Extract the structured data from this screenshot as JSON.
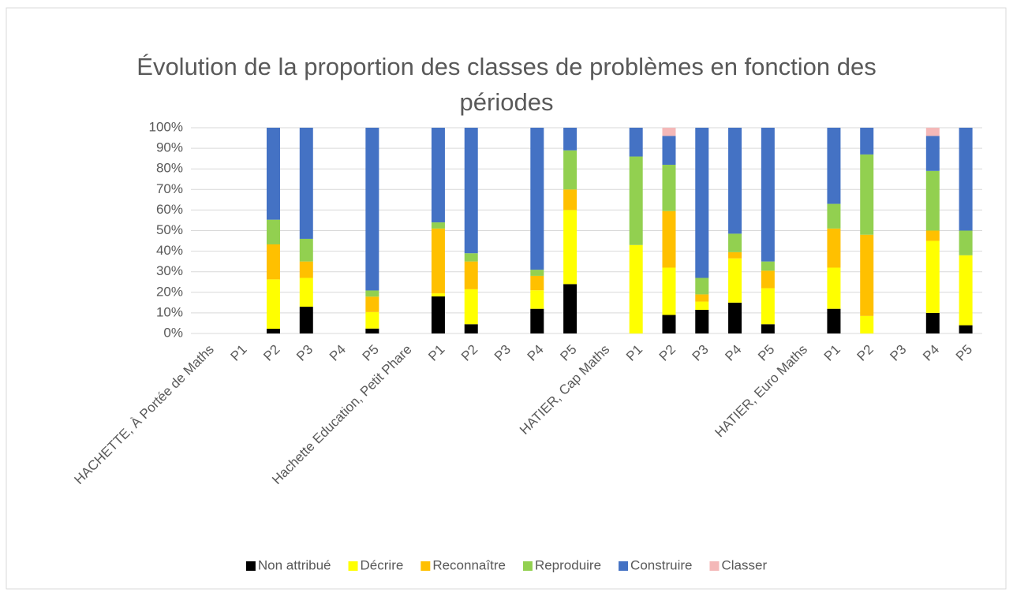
{
  "chart_data": {
    "type": "stacked_bar",
    "title": "Évolution de la proportion des classes de problèmes en fonction des périodes",
    "categories": [
      "HACHETTE, À Portée de Maths",
      "P1",
      "P2",
      "P3",
      "P4",
      "P5",
      "Hachette Education, Petit Phare",
      "P1",
      "P2",
      "P3",
      "P4",
      "P5",
      "HATIER, Cap Maths",
      "P1",
      "P2",
      "P3",
      "P4",
      "P5",
      "HATIER, Euro Maths",
      "P1",
      "P2",
      "P3",
      "P4",
      "P5"
    ],
    "series": [
      {
        "name": "Non attribué",
        "color": "#000000",
        "values": [
          null,
          null,
          2.3,
          13,
          null,
          2.4,
          null,
          18,
          4.5,
          null,
          12,
          24,
          null,
          0,
          9,
          11.5,
          15,
          4.5,
          null,
          12,
          0,
          null,
          10,
          4
        ]
      },
      {
        "name": "Décrire",
        "color": "#ffff00",
        "values": [
          null,
          null,
          24,
          14,
          null,
          8,
          null,
          1.5,
          17,
          null,
          9,
          36,
          null,
          43,
          23,
          4,
          21.5,
          17.5,
          null,
          20,
          8.5,
          null,
          35,
          34
        ]
      },
      {
        "name": "Reconnaître",
        "color": "#ffc000",
        "values": [
          null,
          null,
          17,
          8,
          null,
          7.5,
          null,
          31.5,
          13.5,
          null,
          7,
          10,
          null,
          0,
          27.5,
          3.5,
          3,
          8.5,
          null,
          19,
          39.5,
          null,
          5,
          0
        ]
      },
      {
        "name": "Reproduire",
        "color": "#92d050",
        "values": [
          null,
          null,
          12,
          11,
          null,
          3,
          null,
          3,
          4,
          null,
          3,
          19,
          null,
          43,
          22.5,
          8,
          9,
          4.5,
          null,
          12,
          39,
          null,
          29,
          12
        ]
      },
      {
        "name": "Construire",
        "color": "#4472c4",
        "values": [
          null,
          null,
          44.7,
          54,
          null,
          79.1,
          null,
          46,
          61,
          null,
          69,
          11,
          null,
          14,
          14,
          73,
          51.5,
          65,
          null,
          37,
          13,
          null,
          17,
          50
        ]
      },
      {
        "name": "Classer",
        "color": "#f4b8b8",
        "values": [
          null,
          null,
          0,
          0,
          null,
          0,
          null,
          0,
          0,
          null,
          0,
          0,
          null,
          0,
          4,
          0,
          0,
          0,
          null,
          0,
          0,
          null,
          4,
          0
        ]
      }
    ],
    "ylim": [
      0,
      100
    ],
    "yticks": [
      {
        "value": 0,
        "label": "0%"
      },
      {
        "value": 10,
        "label": "10%"
      },
      {
        "value": 20,
        "label": "20%"
      },
      {
        "value": 30,
        "label": "30%"
      },
      {
        "value": 40,
        "label": "40%"
      },
      {
        "value": 50,
        "label": "50%"
      },
      {
        "value": 60,
        "label": "60%"
      },
      {
        "value": 70,
        "label": "70%"
      },
      {
        "value": 80,
        "label": "80%"
      },
      {
        "value": 90,
        "label": "90%"
      },
      {
        "value": 100,
        "label": "100%"
      }
    ],
    "grid": true,
    "legend": "bottom"
  }
}
